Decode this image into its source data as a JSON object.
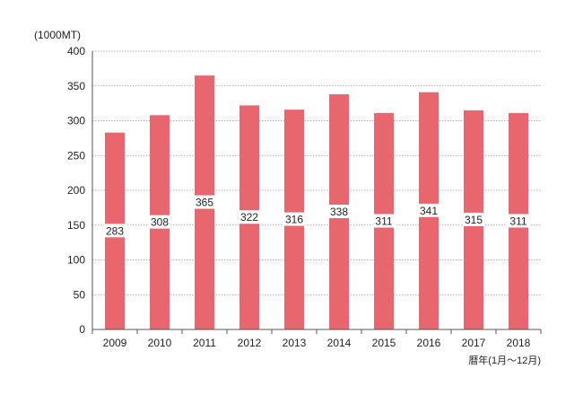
{
  "chart_data": {
    "type": "bar",
    "ylabel": "(1000MT)",
    "xlabel": "暦年(1月〜12月)",
    "categories": [
      "2009",
      "2010",
      "2011",
      "2012",
      "2013",
      "2014",
      "2015",
      "2016",
      "2017",
      "2018"
    ],
    "values": [
      283,
      308,
      365,
      322,
      316,
      338,
      311,
      341,
      315,
      311
    ],
    "ylim": [
      0,
      400
    ],
    "yticks": [
      0,
      50,
      100,
      150,
      200,
      250,
      300,
      350,
      400
    ],
    "grid": true,
    "bar_color": "#E8666E",
    "grid_color": "#9a9a9a",
    "label_background": "#ffffff"
  }
}
